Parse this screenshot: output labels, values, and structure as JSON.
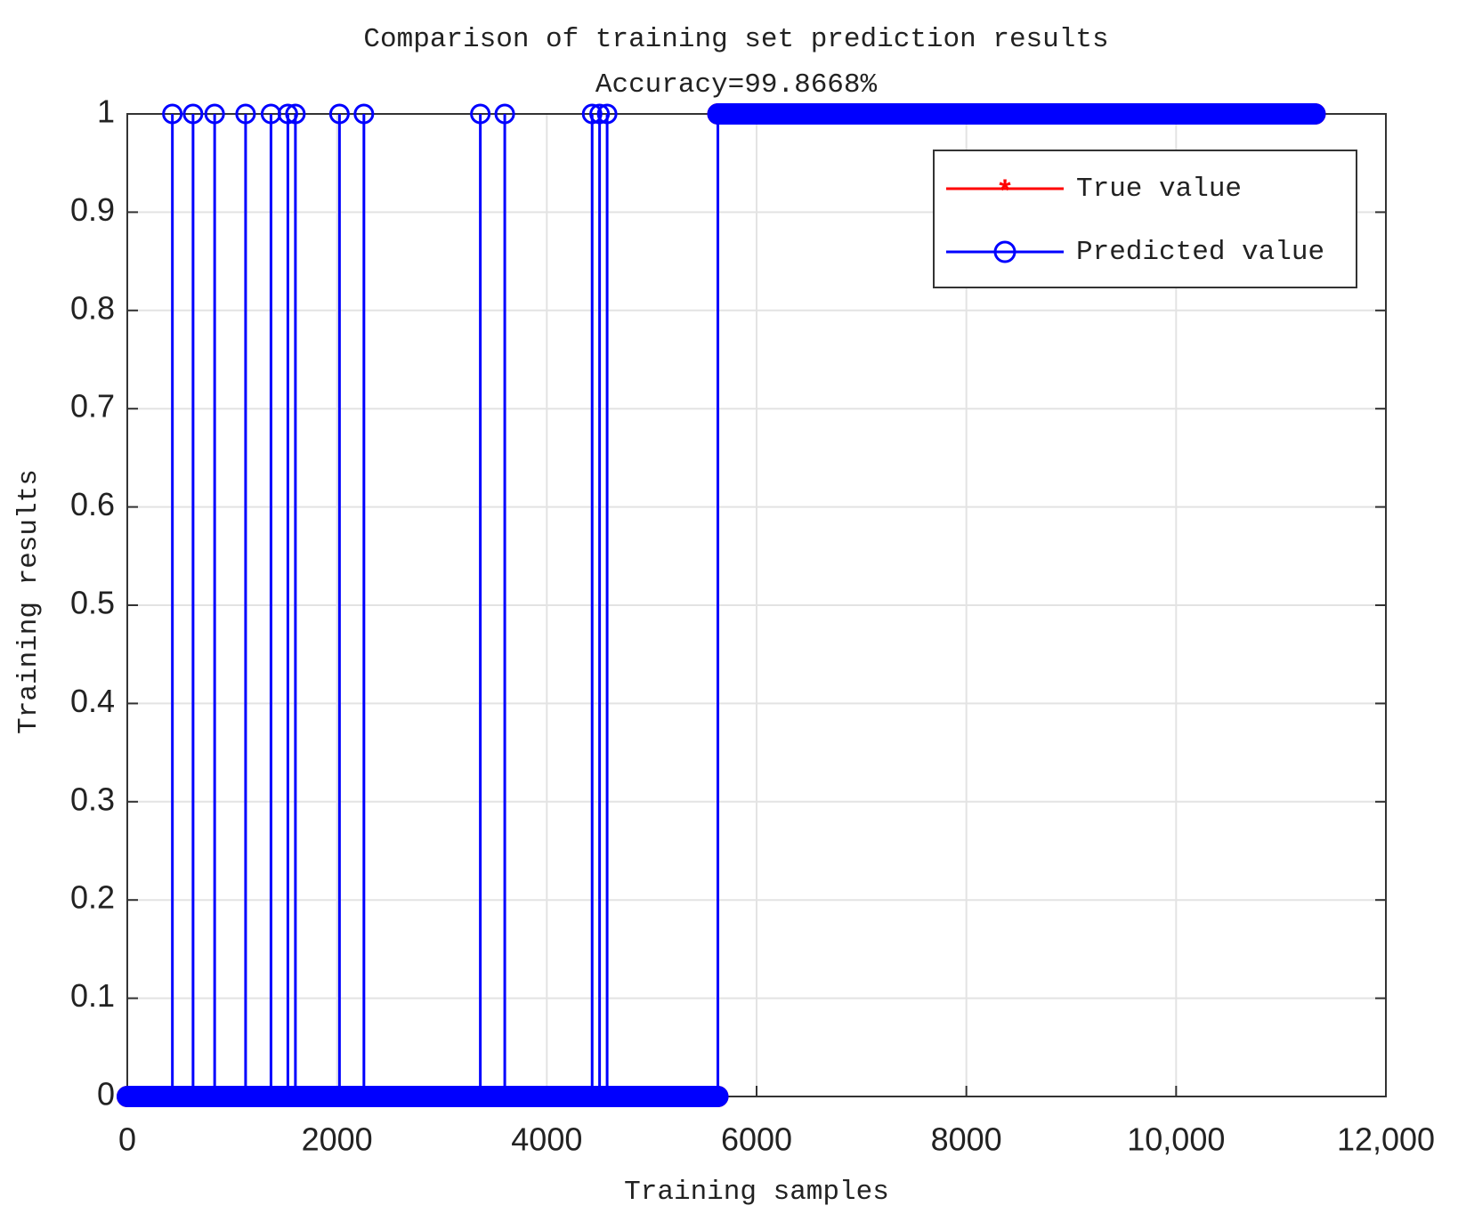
{
  "chart_data": {
    "type": "line",
    "title": "Comparison of training set prediction results",
    "subtitle": "Accuracy=99.8668%",
    "x_label": "Training samples",
    "y_label": "Training results",
    "series": [
      {
        "name": "True value",
        "color": "#ff0000",
        "marker": "*",
        "x": [
          0,
          5631,
          5631,
          11325
        ],
        "values": [
          0,
          0,
          1,
          1
        ]
      },
      {
        "name": "Predicted value",
        "color": "#0000ff",
        "marker": "o",
        "x": [
          0,
          430,
          430,
          430,
          627,
          627,
          627,
          833,
          833,
          833,
          1128,
          1128,
          1128,
          1370,
          1370,
          1370,
          1531,
          1531,
          1531,
          1603,
          1603,
          1603,
          2023,
          2023,
          2023,
          2256,
          2256,
          2256,
          3366,
          3366,
          3366,
          3599,
          3599,
          3599,
          4432,
          4432,
          4432,
          4503,
          4503,
          4503,
          4575,
          4575,
          4575,
          5631,
          5631,
          11325
        ],
        "values": [
          0,
          0,
          1,
          0,
          0,
          1,
          0,
          0,
          1,
          0,
          0,
          1,
          0,
          0,
          1,
          0,
          0,
          1,
          0,
          0,
          1,
          0,
          0,
          1,
          0,
          0,
          1,
          0,
          0,
          1,
          0,
          0,
          1,
          0,
          0,
          1,
          0,
          0,
          1,
          0,
          0,
          1,
          0,
          0,
          1,
          1
        ]
      }
    ],
    "xlim": [
      0,
      12000
    ],
    "xticks": [
      0,
      2000,
      4000,
      6000,
      8000,
      {
        "value": 10000,
        "label": "10,000"
      },
      {
        "value": 12000,
        "label": "12,000"
      }
    ],
    "ylim": [
      0,
      1
    ],
    "yticks": [
      0,
      0.1,
      0.2,
      0.3,
      0.4,
      0.5,
      0.6,
      0.7,
      0.8,
      0.9,
      1
    ],
    "grid": true,
    "legend": "upper right"
  }
}
